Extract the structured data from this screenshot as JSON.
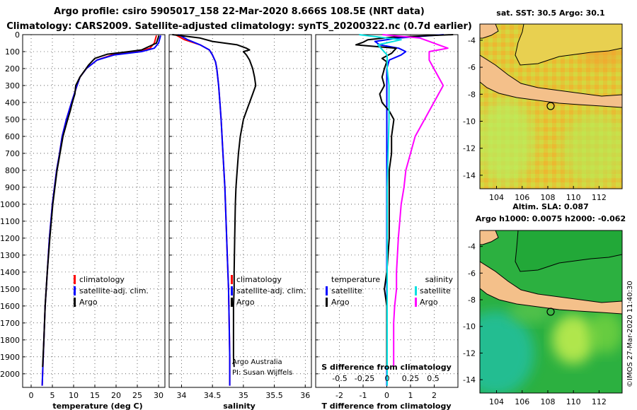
{
  "header": {
    "line1": "Argo profile: csiro 5905017_158 22-Mar-2020 8.666S 108.5E (NRT data)",
    "line2": "Climatology: CARS2009. Satellite-adjusted climatology: synTS_20200322.nc (0.7d earlier)"
  },
  "chart_data": [
    {
      "type": "line",
      "name": "temperature",
      "xlabel": "temperature (deg C)",
      "ylabel": "",
      "xlim": [
        -2,
        31.5
      ],
      "ylim": [
        2080,
        0
      ],
      "xticks": [
        0,
        5,
        10,
        15,
        20,
        25,
        30
      ],
      "yticks": [
        0,
        100,
        200,
        300,
        400,
        500,
        600,
        700,
        800,
        900,
        1000,
        1100,
        1200,
        1300,
        1400,
        1500,
        1600,
        1700,
        1800,
        1900,
        2000
      ],
      "legend": [
        "climatology",
        "satellite-adj. clim.",
        "Argo"
      ],
      "series": [
        {
          "name": "climatology",
          "color": "#ff0000",
          "depth": [
            5,
            50,
            80,
            100,
            120,
            150,
            200,
            250,
            300,
            400,
            500,
            600,
            700,
            800,
            900,
            1000,
            1200,
            1400,
            1600,
            1800,
            2000,
            2070
          ],
          "values": [
            29.5,
            29,
            28,
            25,
            19,
            15.5,
            13,
            11.5,
            10.8,
            9.5,
            8.3,
            7.3,
            6.7,
            6,
            5.5,
            5,
            4.3,
            3.8,
            3.3,
            3,
            2.7,
            2.6
          ]
        },
        {
          "name": "satellite-adj. clim.",
          "color": "#0000ff",
          "depth": [
            5,
            50,
            80,
            100,
            120,
            150,
            200,
            250,
            300,
            400,
            500,
            600,
            700,
            800,
            900,
            1000,
            1200,
            1400,
            1600,
            1800,
            2000,
            2070
          ],
          "values": [
            30.5,
            30,
            29,
            26,
            19.5,
            15.5,
            13,
            11.5,
            10.8,
            9.5,
            8.3,
            7.3,
            6.7,
            6,
            5.5,
            5,
            4.3,
            3.8,
            3.3,
            3,
            2.7,
            2.6
          ]
        },
        {
          "name": "Argo",
          "color": "#000000",
          "depth": [
            5,
            50,
            90,
            100,
            115,
            140,
            180,
            250,
            300,
            350,
            400,
            450,
            500,
            600,
            700,
            800,
            900,
            1000,
            1200,
            1400,
            1600,
            1800,
            1960
          ],
          "values": [
            30.1,
            29.5,
            26,
            23,
            18,
            15,
            13.5,
            11.5,
            10.5,
            10.3,
            9.7,
            9.2,
            8.6,
            7.5,
            6.8,
            6.1,
            5.6,
            5.1,
            4.4,
            3.8,
            3.3,
            3,
            2.7
          ]
        }
      ]
    },
    {
      "type": "line",
      "name": "salinity",
      "xlabel": "salinity",
      "xlim": [
        33.8,
        36.1
      ],
      "ylim": [
        2080,
        0
      ],
      "xticks": [
        34,
        34.5,
        35,
        35.5,
        36
      ],
      "legend": [
        "climatology",
        "satellite-adj. clim.",
        "Argo"
      ],
      "annotations": [
        "Argo Australia",
        "PI: Susan Wijffels"
      ],
      "series": [
        {
          "name": "climatology",
          "color": "#ff0000",
          "depth": [
            0,
            30,
            60,
            90,
            120,
            160,
            200,
            300,
            400,
            500,
            700,
            900,
            1100,
            1300,
            1500,
            1700,
            1900,
            2070
          ],
          "values": [
            33.9,
            34.05,
            34.3,
            34.45,
            34.5,
            34.55,
            34.57,
            34.6,
            34.62,
            34.64,
            34.67,
            34.7,
            34.72,
            34.74,
            34.76,
            34.77,
            34.78,
            34.78
          ]
        },
        {
          "name": "satellite-adj. clim.",
          "color": "#0000ff",
          "depth": [
            0,
            30,
            60,
            90,
            120,
            160,
            200,
            300,
            400,
            500,
            700,
            900,
            1100,
            1300,
            1500,
            1700,
            1900,
            2070
          ],
          "values": [
            33.95,
            34.1,
            34.3,
            34.45,
            34.5,
            34.55,
            34.57,
            34.6,
            34.62,
            34.64,
            34.67,
            34.7,
            34.72,
            34.74,
            34.76,
            34.77,
            34.78,
            34.78
          ]
        },
        {
          "name": "Argo",
          "color": "#000000",
          "depth": [
            0,
            20,
            40,
            60,
            80,
            90,
            100,
            120,
            150,
            200,
            250,
            300,
            350,
            400,
            450,
            500,
            600,
            700,
            800,
            900,
            1000,
            1200,
            1400,
            1500,
            1600,
            1700,
            1800,
            1900,
            1960
          ],
          "values": [
            33.85,
            34.3,
            34.5,
            34.9,
            35.05,
            35.1,
            35.0,
            35.05,
            35.1,
            35.15,
            35.18,
            35.2,
            35.15,
            35.1,
            35.05,
            35.0,
            34.95,
            34.92,
            34.9,
            34.88,
            34.87,
            34.86,
            34.85,
            34.85,
            34.84,
            34.84,
            34.84,
            34.84,
            34.85
          ]
        }
      ]
    },
    {
      "type": "line",
      "name": "difference",
      "xlabel": "T difference from climatology",
      "xlim": [
        -3,
        3
      ],
      "ylim": [
        2080,
        0
      ],
      "xticks": [
        -2,
        -1,
        0,
        1,
        2
      ],
      "s_axis_label": "S difference from climatology",
      "s_ticks": [
        "-0.5",
        "-0.25",
        "0",
        "0.25",
        "0.5"
      ],
      "legend_left_title": "temperature",
      "legend_right_title": "salinity",
      "legend": [
        "satellite",
        "Argo",
        "satellite",
        "Argo"
      ],
      "series": [
        {
          "name": "T satellite",
          "color": "#0000ff",
          "depth": [
            0,
            20,
            40,
            60,
            80,
            100,
            120,
            150,
            200,
            300,
            500,
            800,
            1200,
            1600,
            2000,
            2070
          ],
          "values": [
            2.4,
            0.5,
            -0.5,
            -0.3,
            0.5,
            0.8,
            0.6,
            0.1,
            0,
            0,
            0,
            0,
            0,
            0,
            0,
            0
          ]
        },
        {
          "name": "T Argo",
          "color": "#000000",
          "depth": [
            0,
            15,
            30,
            45,
            60,
            80,
            95,
            110,
            140,
            160,
            200,
            250,
            300,
            350,
            400,
            450,
            500,
            600,
            700,
            800,
            900,
            1000,
            1200,
            1400,
            1500,
            1600,
            1700,
            1800,
            1900,
            1960
          ],
          "values": [
            2.8,
            0.2,
            -0.8,
            -1.0,
            -1.3,
            0.4,
            0.3,
            0.2,
            -0.2,
            0,
            -0.1,
            -0.2,
            -0.1,
            -0.3,
            -0.2,
            0.1,
            0.3,
            0.2,
            0.2,
            0.1,
            0.1,
            0.1,
            0.1,
            0,
            -0.1,
            0,
            0,
            0,
            0,
            0
          ]
        },
        {
          "name": "S satellite",
          "color": "#00e0e0",
          "depth": [
            0,
            30,
            60,
            90,
            120,
            150,
            200,
            300,
            500,
            700,
            900,
            1100,
            1300,
            1500,
            1700,
            1900,
            2000,
            2070
          ],
          "values": [
            -0.3,
            0.15,
            -0.1,
            -0.05,
            0,
            0,
            0,
            0.02,
            0.02,
            0.01,
            0,
            0,
            0,
            0,
            0,
            0,
            0,
            0
          ]
        },
        {
          "name": "S Argo",
          "color": "#ff00ff",
          "depth": [
            0,
            20,
            40,
            60,
            80,
            90,
            100,
            120,
            150,
            200,
            250,
            300,
            350,
            400,
            450,
            500,
            600,
            700,
            800,
            900,
            1000,
            1200,
            1400,
            1500,
            1600,
            1700,
            1800,
            1900,
            1960
          ],
          "values": [
            -0.05,
            0.35,
            0.45,
            0.55,
            0.65,
            0.55,
            0.45,
            0.45,
            0.45,
            0.5,
            0.55,
            0.6,
            0.55,
            0.5,
            0.45,
            0.4,
            0.3,
            0.25,
            0.2,
            0.18,
            0.15,
            0.12,
            0.1,
            0.1,
            0.08,
            0.07,
            0.07,
            0.07,
            0.07
          ]
        }
      ]
    },
    {
      "type": "heatmap",
      "name": "sst-map",
      "title": "sat. SST: 30.5 Argo: 30.1",
      "xticks": [
        "104",
        "106",
        "108",
        "110",
        "112"
      ],
      "yticks": [
        "-4",
        "-6",
        "-8",
        "-10",
        "-12",
        "-14"
      ],
      "xlim": [
        102.7,
        113.8
      ],
      "ylim": [
        -15,
        -2.8
      ],
      "float_position": [
        108.5,
        -8.666
      ],
      "colors": {
        "land": "#f4c08a",
        "sea_a": "#c8f050",
        "sea_b": "#f0c830",
        "sea_c": "#e8a028"
      }
    },
    {
      "type": "heatmap",
      "name": "sla-map",
      "title": "Altim. SLA: 0.087",
      "subtitle": "Argo h1000: 0.0075 h2000: -0.062",
      "xticks": [
        "104",
        "106",
        "108",
        "110",
        "112"
      ],
      "yticks": [
        "-4",
        "-6",
        "-8",
        "-10",
        "-12",
        "-14"
      ],
      "xlim": [
        102.7,
        113.8
      ],
      "ylim": [
        -15,
        -2.8
      ],
      "float_position": [
        108.5,
        -8.666
      ],
      "colors": {
        "land": "#f4c08a",
        "sea_a": "#22a838",
        "sea_b": "#60d040",
        "sea_c": "#18b890"
      }
    }
  ],
  "credit": "©IMOS 27-Mar-2020 11:40:30"
}
